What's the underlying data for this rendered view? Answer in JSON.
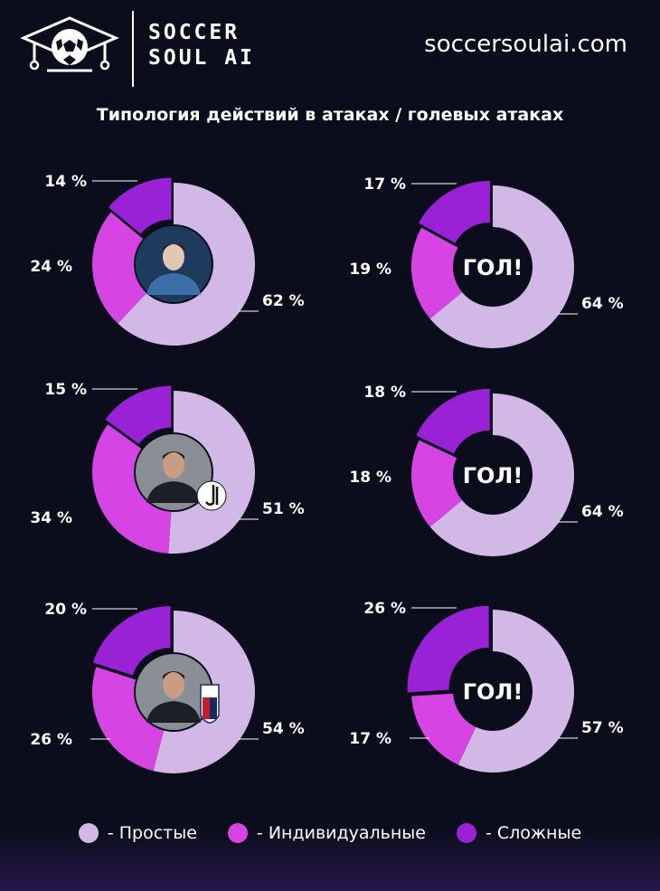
{
  "header": {
    "brand_line1": "SOCCER",
    "brand_line2": "SOUL AI",
    "site": "soccersoulai.com"
  },
  "colors": {
    "background": "#0b0d1c",
    "simple": "#d2b8e6",
    "individual": "#d645e4",
    "complex": "#9a22d6"
  },
  "chart_data": {
    "type": "pie",
    "title": "Типология действий в атаках / голевых атаках",
    "legend": [
      "- Простые",
      "- Индивидуальные",
      "- Сложные"
    ],
    "center_label": "ГОЛ!",
    "charts": [
      {
        "row": 1,
        "side": "left",
        "center": "avatar-ai-icon",
        "values": [
          62,
          24,
          14
        ],
        "labels": [
          "62 %",
          "24 %",
          "14 %"
        ]
      },
      {
        "row": 1,
        "side": "right",
        "center": "goal",
        "values": [
          64,
          19,
          17
        ],
        "labels": [
          "64 %",
          "19 %",
          "17 %"
        ]
      },
      {
        "row": 2,
        "side": "left",
        "center": "coach-juventus-icon",
        "values": [
          51,
          34,
          15
        ],
        "labels": [
          "51 %",
          "34 %",
          "15 %"
        ]
      },
      {
        "row": 2,
        "side": "right",
        "center": "goal",
        "values": [
          64,
          18,
          18
        ],
        "labels": [
          "64 %",
          "18 %",
          "18 %"
        ]
      },
      {
        "row": 3,
        "side": "left",
        "center": "coach-bologna-icon",
        "values": [
          54,
          26,
          20
        ],
        "labels": [
          "54 %",
          "26 %",
          "20 %"
        ]
      },
      {
        "row": 3,
        "side": "right",
        "center": "goal",
        "values": [
          57,
          17,
          26
        ],
        "labels": [
          "57 %",
          "17 %",
          "26 %"
        ]
      }
    ]
  }
}
